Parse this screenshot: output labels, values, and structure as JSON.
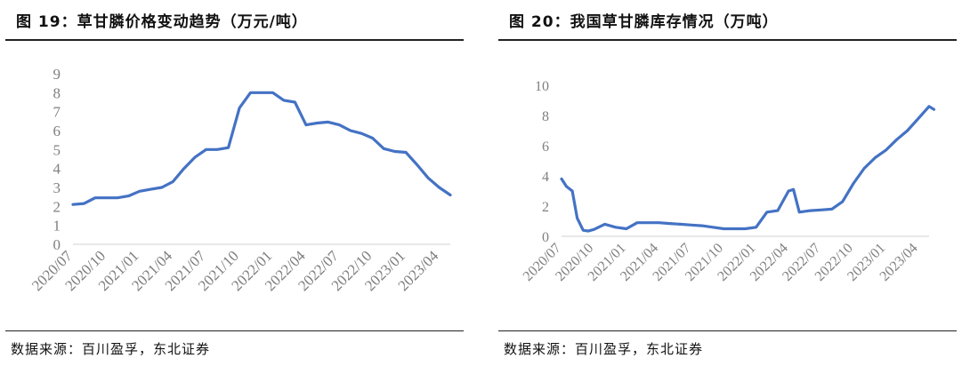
{
  "chart_data": [
    {
      "type": "line",
      "title": "图 19：草甘膦价格变动趋势（万元/吨）",
      "source": "数据来源：百川盈孚，东北证券",
      "ylim": [
        0,
        9
      ],
      "yticks": [
        0,
        1,
        2,
        3,
        4,
        5,
        6,
        7,
        8,
        9
      ],
      "x_range": [
        "2020/07",
        "2023/05"
      ],
      "xticks": [
        "2020/07",
        "2020/10",
        "2021/01",
        "2021/04",
        "2021/07",
        "2021/10",
        "2022/01",
        "2022/04",
        "2022/07",
        "2022/10",
        "2023/01",
        "2023/04"
      ],
      "grid": false,
      "line_color": "#4472c4",
      "series": [
        {
          "x": [
            "2020/07",
            "2020/08",
            "2020/09",
            "2020/10",
            "2020/11",
            "2020/12",
            "2021/01",
            "2021/02",
            "2021/03",
            "2021/04",
            "2021/05",
            "2021/06",
            "2021/07",
            "2021/08",
            "2021/09",
            "2021/10",
            "2021/11",
            "2021/12",
            "2022/01",
            "2022/02",
            "2022/03",
            "2022/04",
            "2022/05",
            "2022/06",
            "2022/07",
            "2022/08",
            "2022/09",
            "2022/10",
            "2022/11",
            "2022/12",
            "2023/01",
            "2023/02",
            "2023/03",
            "2023/04",
            "2023/05"
          ],
          "y": [
            2.1,
            2.15,
            2.45,
            2.45,
            2.45,
            2.55,
            2.8,
            2.9,
            3.0,
            3.3,
            4.0,
            4.6,
            5.0,
            5.0,
            5.1,
            7.2,
            8.0,
            8.0,
            8.0,
            7.6,
            7.5,
            6.3,
            6.4,
            6.45,
            6.3,
            6.0,
            5.85,
            5.6,
            5.05,
            4.9,
            4.85,
            4.2,
            3.5,
            3.0,
            2.6
          ]
        }
      ]
    },
    {
      "type": "line",
      "title": "图 20：我国草甘膦库存情况（万吨）",
      "source": "数据来源：百川盈孚，东北证券",
      "ylim": [
        0,
        10
      ],
      "yticks": [
        0,
        2,
        4,
        6,
        8,
        10
      ],
      "x_range": [
        "2020/07",
        "2023/05"
      ],
      "xticks": [
        "2020/07",
        "2020/10",
        "2021/01",
        "2021/04",
        "2021/07",
        "2021/10",
        "2022/01",
        "2022/04",
        "2022/07",
        "2022/10",
        "2023/01",
        "2023/04"
      ],
      "grid": false,
      "line_color": "#4472c4",
      "series": [
        {
          "x": [
            "2020/07",
            "2020/07",
            "2020/08",
            "2020/08",
            "2020/09",
            "2020/09",
            "2020/10",
            "2020/11",
            "2020/12",
            "2021/01",
            "2021/02",
            "2021/03",
            "2021/04",
            "2021/05",
            "2021/06",
            "2021/07",
            "2021/08",
            "2021/09",
            "2021/10",
            "2021/11",
            "2021/12",
            "2022/01",
            "2022/02",
            "2022/03",
            "2022/04",
            "2022/04",
            "2022/05",
            "2022/06",
            "2022/07",
            "2022/08",
            "2022/09",
            "2022/10",
            "2022/11",
            "2022/12",
            "2023/01",
            "2023/02",
            "2023/03",
            "2023/04",
            "2023/05",
            "2023/05"
          ],
          "y": [
            3.8,
            3.3,
            3.0,
            1.2,
            0.4,
            0.35,
            0.45,
            0.8,
            0.6,
            0.5,
            0.9,
            0.9,
            0.9,
            0.85,
            0.8,
            0.75,
            0.7,
            0.6,
            0.5,
            0.5,
            0.5,
            0.6,
            1.6,
            1.7,
            3.0,
            3.1,
            1.6,
            1.7,
            1.75,
            1.8,
            2.3,
            3.5,
            4.5,
            5.2,
            5.7,
            6.4,
            7.0,
            7.8,
            8.6,
            8.4
          ]
        }
      ]
    }
  ]
}
